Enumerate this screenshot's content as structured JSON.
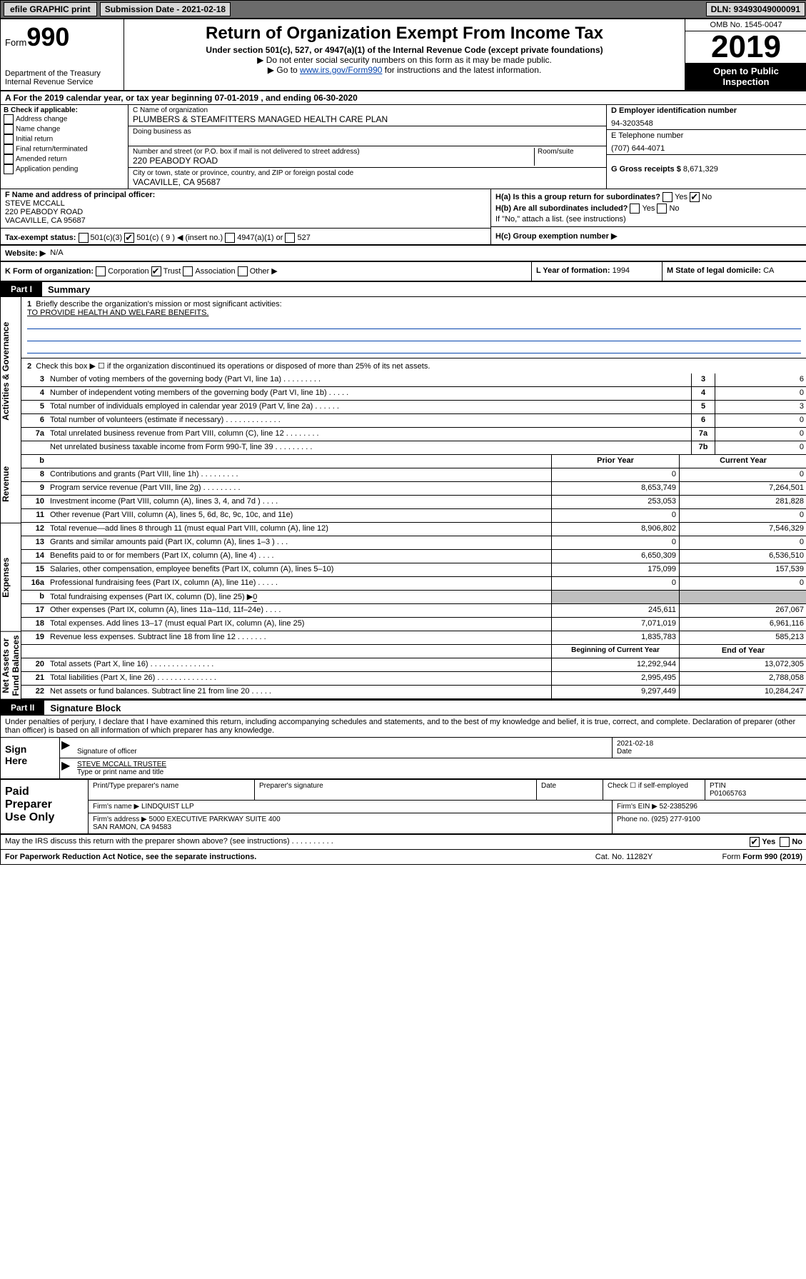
{
  "topbar": {
    "efile": "efile GRAPHIC print",
    "submission": "Submission Date - 2021-02-18",
    "dln": "DLN: 93493049000091"
  },
  "header": {
    "form_prefix": "Form",
    "form_num": "990",
    "dept": "Department of the Treasury\nInternal Revenue Service",
    "title": "Return of Organization Exempt From Income Tax",
    "subtitle": "Under section 501(c), 527, or 4947(a)(1) of the Internal Revenue Code (except private foundations)",
    "note1": "▶ Do not enter social security numbers on this form as it may be made public.",
    "note2_pre": "▶ Go to ",
    "note2_link": "www.irs.gov/Form990",
    "note2_post": " for instructions and the latest information.",
    "omb": "OMB No. 1545-0047",
    "year": "2019",
    "open": "Open to Public\nInspection"
  },
  "A": {
    "text": "A   For the 2019 calendar year, or tax year beginning 07-01-2019     , and ending 06-30-2020"
  },
  "B": {
    "label": "B Check if applicable:",
    "items": [
      "Address change",
      "Name change",
      "Initial return",
      "Final return/terminated",
      "Amended return",
      "Application pending"
    ]
  },
  "C": {
    "name_label": "C Name of organization",
    "name": "PLUMBERS & STEAMFITTERS MANAGED HEALTH CARE PLAN",
    "dba_label": "Doing business as",
    "dba": "",
    "addr_label": "Number and street (or P.O. box if mail is not delivered to street address)",
    "room_label": "Room/suite",
    "addr": "220 PEABODY ROAD",
    "city_label": "City or town, state or province, country, and ZIP or foreign postal code",
    "city": "VACAVILLE, CA  95687"
  },
  "D": {
    "label": "D Employer identification number",
    "value": "94-3203548"
  },
  "E": {
    "label": "E Telephone number",
    "value": "(707) 644-4071"
  },
  "G": {
    "label": "G Gross receipts $",
    "value": "8,671,329"
  },
  "F": {
    "label": "F  Name and address of principal officer:",
    "name": "STEVE MCCALL",
    "addr": "220 PEABODY ROAD\nVACAVILLE, CA  95687"
  },
  "H": {
    "a_label": "H(a)  Is this a group return for subordinates?",
    "a_yes": "Yes",
    "a_no": "No",
    "b_label": "H(b)  Are all subordinates included?",
    "b_yes": "Yes",
    "b_no": "No",
    "b_note": "If \"No,\" attach a list. (see instructions)",
    "c_label": "H(c)  Group exemption number ▶"
  },
  "I": {
    "label": "Tax-exempt status:",
    "o1": "501(c)(3)",
    "o2": "501(c) ( 9 ) ◀ (insert no.)",
    "o3": "4947(a)(1) or",
    "o4": "527"
  },
  "J": {
    "label": "Website: ▶",
    "value": "N/A"
  },
  "K": {
    "label": "K Form of organization:",
    "o1": "Corporation",
    "o2": "Trust",
    "o3": "Association",
    "o4": "Other ▶"
  },
  "L": {
    "label": "L Year of formation:",
    "value": "1994"
  },
  "M": {
    "label": "M State of legal domicile:",
    "value": "CA"
  },
  "part1": {
    "label": "Part I",
    "title": "Summary"
  },
  "summary": {
    "s1": {
      "num": "1",
      "text": "Briefly describe the organization's mission or most significant activities:",
      "value": "TO PROVIDE HEALTH AND WELFARE BENEFITS."
    },
    "s2": {
      "num": "2",
      "text": "Check this box ▶ ☐  if the organization discontinued its operations or disposed of more than 25% of its net assets."
    },
    "lines_small": [
      {
        "num": "3",
        "text": "Number of voting members of the governing body (Part VI, line 1a)  .  .  .  .  .  .  .  .  .",
        "box": "3",
        "val": "6"
      },
      {
        "num": "4",
        "text": "Number of independent voting members of the governing body (Part VI, line 1b)  .  .  .  .  .",
        "box": "4",
        "val": "0"
      },
      {
        "num": "5",
        "text": "Total number of individuals employed in calendar year 2019 (Part V, line 2a)  .  .  .  .  .  .",
        "box": "5",
        "val": "3"
      },
      {
        "num": "6",
        "text": "Total number of volunteers (estimate if necessary)  .  .  .  .  .  .  .  .  .  .  .  .  .",
        "box": "6",
        "val": "0"
      },
      {
        "num": "7a",
        "text": "Total unrelated business revenue from Part VIII, column (C), line 12  .  .  .  .  .  .  .  .",
        "box": "7a",
        "val": "0"
      },
      {
        "num": "",
        "text": "Net unrelated business taxable income from Form 990-T, line 39  .  .  .  .  .  .  .  .  .",
        "box": "7b",
        "val": "0"
      }
    ],
    "year_hdr": {
      "num": "b",
      "prior": "Prior Year",
      "current": "Current Year"
    },
    "revenue": [
      {
        "num": "8",
        "text": "Contributions and grants (Part VIII, line 1h)  .  .  .  .  .  .  .  .  .",
        "p": "0",
        "c": "0"
      },
      {
        "num": "9",
        "text": "Program service revenue (Part VIII, line 2g)  .  .  .  .  .  .  .  .  .",
        "p": "8,653,749",
        "c": "7,264,501"
      },
      {
        "num": "10",
        "text": "Investment income (Part VIII, column (A), lines 3, 4, and 7d )  .  .  .  .",
        "p": "253,053",
        "c": "281,828"
      },
      {
        "num": "11",
        "text": "Other revenue (Part VIII, column (A), lines 5, 6d, 8c, 9c, 10c, and 11e)",
        "p": "0",
        "c": "0"
      },
      {
        "num": "12",
        "text": "Total revenue—add lines 8 through 11 (must equal Part VIII, column (A), line 12)",
        "p": "8,906,802",
        "c": "7,546,329"
      }
    ],
    "expenses": [
      {
        "num": "13",
        "text": "Grants and similar amounts paid (Part IX, column (A), lines 1–3 )  .  .  .",
        "p": "0",
        "c": "0"
      },
      {
        "num": "14",
        "text": "Benefits paid to or for members (Part IX, column (A), line 4)  .  .  .  .",
        "p": "6,650,309",
        "c": "6,536,510"
      },
      {
        "num": "15",
        "text": "Salaries, other compensation, employee benefits (Part IX, column (A), lines 5–10)",
        "p": "175,099",
        "c": "157,539"
      },
      {
        "num": "16a",
        "text": "Professional fundraising fees (Part IX, column (A), line 11e)  .  .  .  .  .",
        "p": "0",
        "c": "0"
      },
      {
        "num": "b",
        "text": "Total fundraising expenses (Part IX, column (D), line 25) ▶",
        "p": "",
        "c": "",
        "sub": "0",
        "shade": true
      },
      {
        "num": "17",
        "text": "Other expenses (Part IX, column (A), lines 11a–11d, 11f–24e)  .  .  .  .",
        "p": "245,611",
        "c": "267,067"
      },
      {
        "num": "18",
        "text": "Total expenses. Add lines 13–17 (must equal Part IX, column (A), line 25)",
        "p": "7,071,019",
        "c": "6,961,116"
      },
      {
        "num": "19",
        "text": "Revenue less expenses. Subtract line 18 from line 12  .  .  .  .  .  .  .",
        "p": "1,835,783",
        "c": "585,213"
      }
    ],
    "net_hdr": {
      "prior": "Beginning of Current Year",
      "current": "End of Year"
    },
    "net": [
      {
        "num": "20",
        "text": "Total assets (Part X, line 16)  .  .  .  .  .  .  .  .  .  .  .  .  .  .  .",
        "p": "12,292,944",
        "c": "13,072,305"
      },
      {
        "num": "21",
        "text": "Total liabilities (Part X, line 26)  .  .  .  .  .  .  .  .  .  .  .  .  .  .",
        "p": "2,995,495",
        "c": "2,788,058"
      },
      {
        "num": "22",
        "text": "Net assets or fund balances. Subtract line 21 from line 20  .  .  .  .  .",
        "p": "9,297,449",
        "c": "10,284,247"
      }
    ],
    "sidebars": [
      "Activities & Governance",
      "Revenue",
      "Expenses",
      "Net Assets or\nFund Balances"
    ]
  },
  "part2": {
    "label": "Part II",
    "title": "Signature Block"
  },
  "perjury": "Under penalties of perjury, I declare that I have examined this return, including accompanying schedules and statements, and to the best of my knowledge and belief, it is true, correct, and complete. Declaration of preparer (other than officer) is based on all information of which preparer has any knowledge.",
  "sign": {
    "label": "Sign\nHere",
    "sig_officer": "Signature of officer",
    "date_label": "Date",
    "date": "2021-02-18",
    "name": "STEVE MCCALL TRUSTEE",
    "name_label": "Type or print name and title"
  },
  "paid": {
    "label": "Paid\nPreparer\nUse Only",
    "h1": "Print/Type preparer's name",
    "h2": "Preparer's signature",
    "h3": "Date",
    "h4": "Check ☐ if self-employed",
    "h5": "PTIN",
    "ptin": "P01065763",
    "firm_label": "Firm's name    ▶",
    "firm": "LINDQUIST LLP",
    "ein_label": "Firm's EIN ▶",
    "ein": "52-2385296",
    "addr_label": "Firm's address ▶",
    "addr": "5000 EXECUTIVE PARKWAY SUITE 400\nSAN RAMON, CA  94583",
    "phone_label": "Phone no.",
    "phone": "(925) 277-9100"
  },
  "discuss": {
    "text": "May the IRS discuss this return with the preparer shown above? (see instructions)  .  .  .  .  .  .  .  .  .  .",
    "yes": "Yes",
    "no": "No"
  },
  "footer": {
    "left": "For Paperwork Reduction Act Notice, see the separate instructions.",
    "cat": "Cat. No. 11282Y",
    "form": "Form 990 (2019)"
  }
}
